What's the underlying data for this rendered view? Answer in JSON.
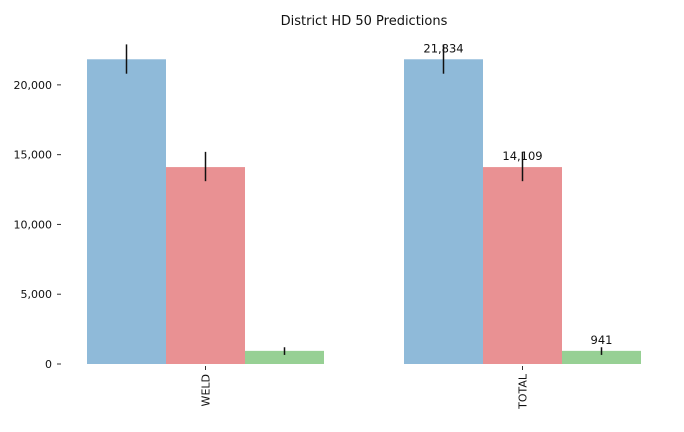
{
  "chart_data": {
    "type": "bar",
    "title": "District HD 50 Predictions",
    "xlabel": "",
    "ylabel": "",
    "categories": [
      "WELD",
      "TOTAL"
    ],
    "ylim": [
      0,
      23000
    ],
    "yticks": [
      0,
      5000,
      10000,
      15000,
      20000
    ],
    "ytick_labels": [
      "0",
      "5,000",
      "10,000",
      "15,000",
      "20,000"
    ],
    "grid": false,
    "legend": "none",
    "series": [
      {
        "color": "#8fbad9",
        "values": [
          21834,
          21834
        ],
        "error_low": [
          20800,
          20800
        ],
        "error_high": [
          22900,
          22900
        ],
        "labels": [
          "",
          "21,834"
        ]
      },
      {
        "color": "#e99193",
        "values": [
          14109,
          14109
        ],
        "error_low": [
          13100,
          13100
        ],
        "error_high": [
          15200,
          15200
        ],
        "labels": [
          "",
          "14,109"
        ]
      },
      {
        "color": "#97d094",
        "values": [
          941,
          941
        ],
        "error_low": [
          650,
          650
        ],
        "error_high": [
          1200,
          1200
        ],
        "labels": [
          "",
          "941"
        ]
      }
    ]
  }
}
